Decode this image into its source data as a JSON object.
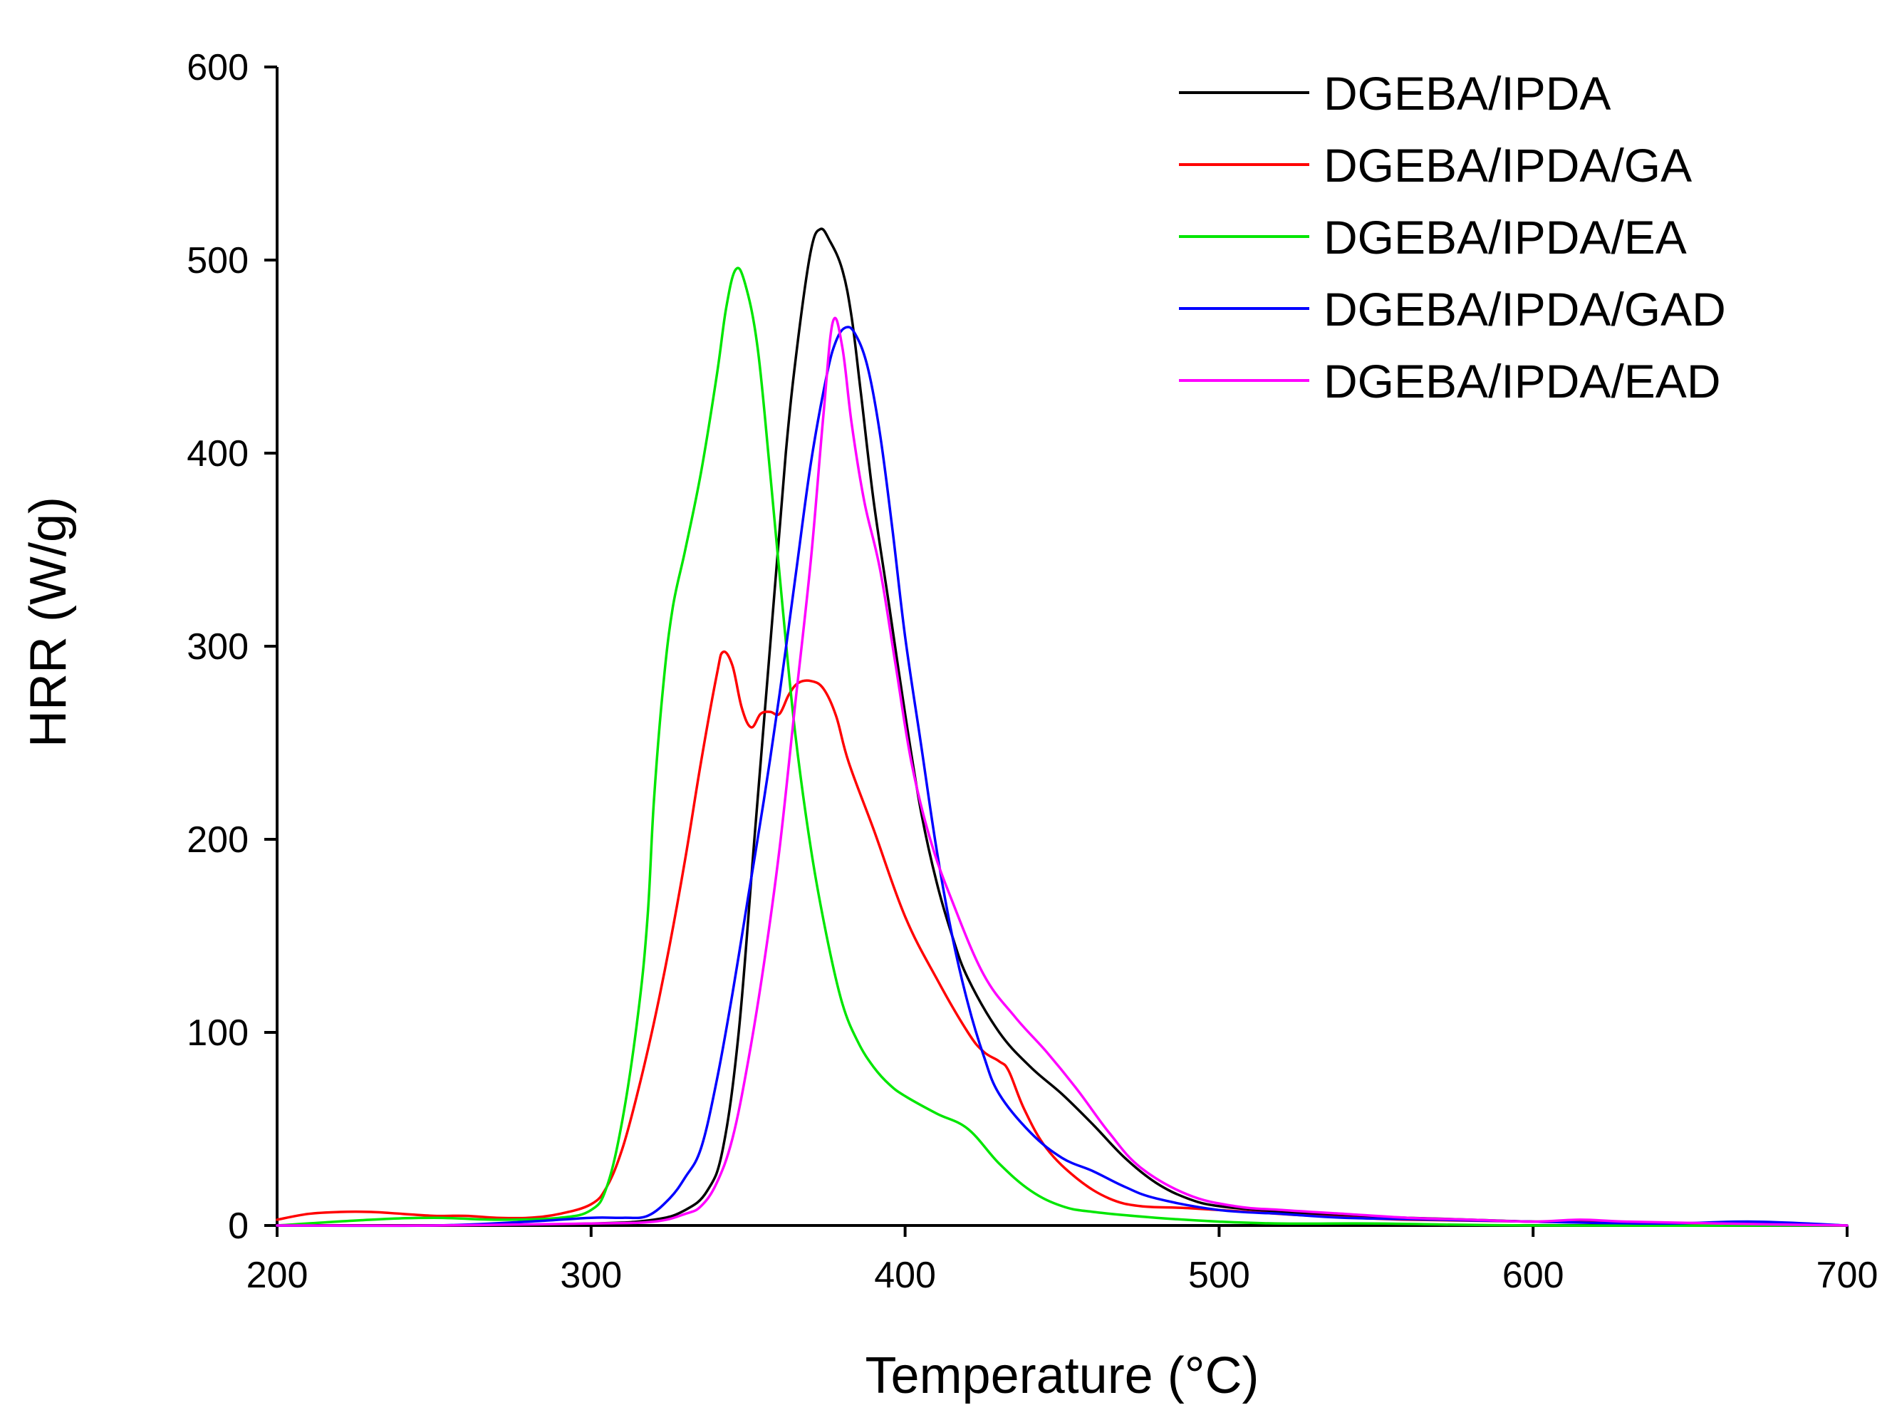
{
  "chart_data": {
    "type": "line",
    "title": "",
    "xlabel": "Temperature (°C)",
    "ylabel": "HRR (W/g)",
    "xlim": [
      200,
      700
    ],
    "ylim": [
      0,
      600
    ],
    "x_ticks": [
      200,
      300,
      400,
      500,
      600,
      700
    ],
    "y_ticks": [
      0,
      100,
      200,
      300,
      400,
      500,
      600
    ],
    "x_tick_labels": [
      "200",
      "300",
      "400",
      "500",
      "600",
      "700"
    ],
    "y_tick_labels": [
      "0",
      "100",
      "200",
      "300",
      "400",
      "500",
      "600"
    ],
    "grid": false,
    "legend_position": "top-right",
    "series": [
      {
        "name": "DGEBA/IPDA",
        "color": "#000000",
        "points": [
          [
            200,
            0
          ],
          [
            250,
            0
          ],
          [
            300,
            1
          ],
          [
            320,
            3
          ],
          [
            330,
            8
          ],
          [
            337,
            18
          ],
          [
            342,
            40
          ],
          [
            347,
            100
          ],
          [
            352,
            200
          ],
          [
            357,
            300
          ],
          [
            362,
            400
          ],
          [
            366,
            460
          ],
          [
            370,
            505
          ],
          [
            373,
            516
          ],
          [
            376,
            510
          ],
          [
            380,
            495
          ],
          [
            383,
            470
          ],
          [
            386,
            430
          ],
          [
            390,
            375
          ],
          [
            395,
            320
          ],
          [
            400,
            265
          ],
          [
            405,
            215
          ],
          [
            410,
            178
          ],
          [
            415,
            150
          ],
          [
            420,
            128
          ],
          [
            430,
            100
          ],
          [
            440,
            82
          ],
          [
            450,
            68
          ],
          [
            460,
            52
          ],
          [
            470,
            35
          ],
          [
            480,
            22
          ],
          [
            490,
            14
          ],
          [
            500,
            10
          ],
          [
            520,
            7
          ],
          [
            540,
            5
          ],
          [
            560,
            4
          ],
          [
            580,
            3
          ],
          [
            600,
            2
          ],
          [
            620,
            2
          ],
          [
            640,
            1
          ],
          [
            660,
            1
          ],
          [
            700,
            0
          ]
        ]
      },
      {
        "name": "DGEBA/IPDA/GA",
        "color": "#ff0000",
        "points": [
          [
            200,
            3
          ],
          [
            210,
            6
          ],
          [
            220,
            7
          ],
          [
            230,
            7
          ],
          [
            240,
            6
          ],
          [
            250,
            5
          ],
          [
            260,
            5
          ],
          [
            270,
            4
          ],
          [
            280,
            4
          ],
          [
            290,
            6
          ],
          [
            300,
            11
          ],
          [
            305,
            20
          ],
          [
            310,
            40
          ],
          [
            315,
            70
          ],
          [
            320,
            105
          ],
          [
            325,
            145
          ],
          [
            330,
            190
          ],
          [
            335,
            240
          ],
          [
            340,
            285
          ],
          [
            342,
            297
          ],
          [
            345,
            290
          ],
          [
            348,
            268
          ],
          [
            351,
            258
          ],
          [
            354,
            265
          ],
          [
            357,
            266
          ],
          [
            360,
            265
          ],
          [
            363,
            275
          ],
          [
            366,
            281
          ],
          [
            370,
            282
          ],
          [
            374,
            278
          ],
          [
            378,
            264
          ],
          [
            382,
            240
          ],
          [
            390,
            205
          ],
          [
            400,
            160
          ],
          [
            410,
            128
          ],
          [
            420,
            100
          ],
          [
            425,
            90
          ],
          [
            430,
            85
          ],
          [
            433,
            80
          ],
          [
            438,
            60
          ],
          [
            445,
            40
          ],
          [
            455,
            24
          ],
          [
            465,
            14
          ],
          [
            475,
            10
          ],
          [
            490,
            9
          ],
          [
            510,
            7
          ],
          [
            530,
            5
          ],
          [
            560,
            3
          ],
          [
            600,
            2
          ],
          [
            640,
            1
          ],
          [
            700,
            0
          ]
        ]
      },
      {
        "name": "DGEBA/IPDA/EA",
        "color": "#00e600",
        "points": [
          [
            200,
            0
          ],
          [
            230,
            3
          ],
          [
            250,
            4
          ],
          [
            270,
            3
          ],
          [
            290,
            4
          ],
          [
            300,
            8
          ],
          [
            305,
            20
          ],
          [
            310,
            55
          ],
          [
            315,
            110
          ],
          [
            318,
            160
          ],
          [
            320,
            220
          ],
          [
            323,
            280
          ],
          [
            326,
            320
          ],
          [
            330,
            350
          ],
          [
            335,
            390
          ],
          [
            340,
            440
          ],
          [
            343,
            475
          ],
          [
            346,
            495
          ],
          [
            349,
            488
          ],
          [
            353,
            455
          ],
          [
            357,
            390
          ],
          [
            361,
            320
          ],
          [
            365,
            255
          ],
          [
            370,
            195
          ],
          [
            375,
            150
          ],
          [
            380,
            115
          ],
          [
            385,
            95
          ],
          [
            390,
            82
          ],
          [
            395,
            73
          ],
          [
            400,
            67
          ],
          [
            410,
            58
          ],
          [
            420,
            50
          ],
          [
            430,
            32
          ],
          [
            440,
            18
          ],
          [
            450,
            10
          ],
          [
            460,
            7
          ],
          [
            480,
            4
          ],
          [
            500,
            2
          ],
          [
            520,
            1
          ],
          [
            550,
            1
          ],
          [
            600,
            0
          ],
          [
            700,
            0
          ]
        ]
      },
      {
        "name": "DGEBA/IPDA/GAD",
        "color": "#0000ff",
        "points": [
          [
            200,
            0
          ],
          [
            250,
            0
          ],
          [
            280,
            2
          ],
          [
            300,
            4
          ],
          [
            310,
            4
          ],
          [
            318,
            5
          ],
          [
            325,
            14
          ],
          [
            330,
            25
          ],
          [
            335,
            40
          ],
          [
            340,
            75
          ],
          [
            345,
            120
          ],
          [
            350,
            170
          ],
          [
            355,
            220
          ],
          [
            360,
            275
          ],
          [
            365,
            335
          ],
          [
            370,
            395
          ],
          [
            375,
            440
          ],
          [
            378,
            458
          ],
          [
            381,
            465
          ],
          [
            384,
            462
          ],
          [
            388,
            445
          ],
          [
            392,
            410
          ],
          [
            396,
            360
          ],
          [
            400,
            305
          ],
          [
            405,
            250
          ],
          [
            410,
            195
          ],
          [
            415,
            150
          ],
          [
            420,
            115
          ],
          [
            425,
            88
          ],
          [
            430,
            68
          ],
          [
            440,
            48
          ],
          [
            450,
            35
          ],
          [
            460,
            28
          ],
          [
            470,
            20
          ],
          [
            480,
            14
          ],
          [
            500,
            8
          ],
          [
            520,
            6
          ],
          [
            540,
            4
          ],
          [
            570,
            3
          ],
          [
            600,
            2
          ],
          [
            640,
            1
          ],
          [
            670,
            2
          ],
          [
            700,
            0
          ]
        ]
      },
      {
        "name": "DGEBA/IPDA/EAD",
        "color": "#ff00ff",
        "points": [
          [
            200,
            0
          ],
          [
            250,
            0
          ],
          [
            300,
            1
          ],
          [
            320,
            2
          ],
          [
            330,
            6
          ],
          [
            335,
            10
          ],
          [
            340,
            22
          ],
          [
            345,
            45
          ],
          [
            350,
            85
          ],
          [
            355,
            135
          ],
          [
            360,
            195
          ],
          [
            365,
            270
          ],
          [
            370,
            345
          ],
          [
            374,
            420
          ],
          [
            377,
            468
          ],
          [
            380,
            455
          ],
          [
            383,
            415
          ],
          [
            387,
            375
          ],
          [
            392,
            340
          ],
          [
            397,
            290
          ],
          [
            402,
            240
          ],
          [
            408,
            200
          ],
          [
            415,
            168
          ],
          [
            425,
            130
          ],
          [
            435,
            108
          ],
          [
            445,
            90
          ],
          [
            455,
            70
          ],
          [
            465,
            48
          ],
          [
            475,
            30
          ],
          [
            490,
            16
          ],
          [
            505,
            10
          ],
          [
            520,
            8
          ],
          [
            540,
            6
          ],
          [
            560,
            4
          ],
          [
            580,
            3
          ],
          [
            600,
            2
          ],
          [
            615,
            3
          ],
          [
            630,
            2
          ],
          [
            660,
            1
          ],
          [
            700,
            0
          ]
        ]
      }
    ]
  }
}
